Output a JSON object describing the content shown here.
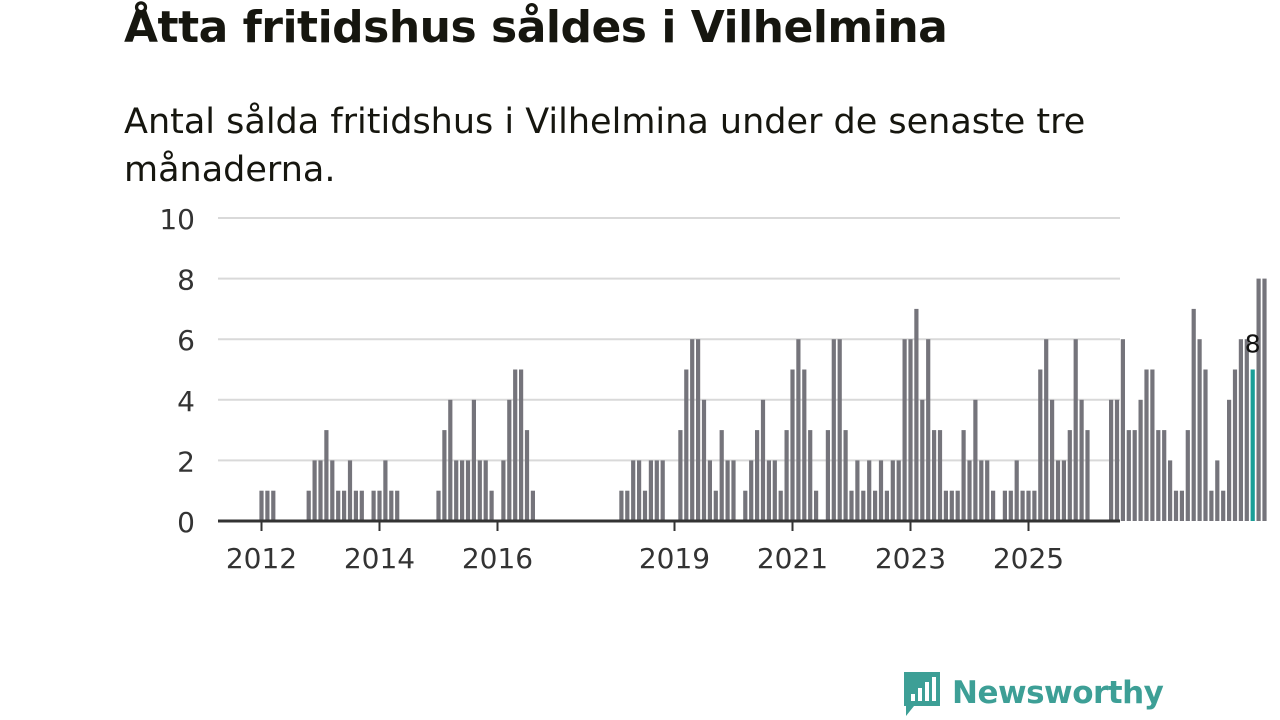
{
  "title": "Åtta fritidshus såldes i Vilhelmina",
  "subtitle": "Antal sålda fritidshus i Vilhelmina under de senaste tre månaderna.",
  "brand": {
    "name": "Newsworthy",
    "color": "#3d9f96"
  },
  "colors": {
    "bar": "#75747b",
    "highlight": "#1a9e97",
    "grid": "#d9d9d9",
    "axis": "#333333"
  },
  "chart_data": {
    "type": "bar",
    "title": "Åtta fritidshus såldes i Vilhelmina",
    "xlabel": "",
    "ylabel": "",
    "ylim": [
      0,
      10
    ],
    "yticks": [
      0,
      2,
      4,
      6,
      8,
      10
    ],
    "grid": true,
    "x_start": "2012-01",
    "x_tick_labels": [
      {
        "label": "2012",
        "index": 0
      },
      {
        "label": "2014",
        "index": 20
      },
      {
        "label": "2016",
        "index": 40
      },
      {
        "label": "2019",
        "index": 70
      },
      {
        "label": "2021",
        "index": 90
      },
      {
        "label": "2023",
        "index": 110
      },
      {
        "label": "2025",
        "index": 130
      }
    ],
    "values": [
      1,
      1,
      1,
      0,
      0,
      0,
      0,
      0,
      1,
      2,
      2,
      3,
      2,
      1,
      1,
      2,
      1,
      1,
      0,
      1,
      1,
      2,
      1,
      1,
      0,
      0,
      0,
      0,
      0,
      0,
      1,
      3,
      4,
      2,
      2,
      2,
      4,
      2,
      2,
      1,
      0,
      2,
      4,
      5,
      5,
      3,
      1,
      0,
      0,
      0,
      0,
      0,
      0,
      0,
      0,
      0,
      0,
      0,
      0,
      0,
      0,
      1,
      1,
      2,
      2,
      1,
      2,
      2,
      2,
      0,
      0,
      3,
      5,
      6,
      6,
      4,
      2,
      1,
      3,
      2,
      2,
      0,
      1,
      2,
      3,
      4,
      2,
      2,
      1,
      3,
      5,
      6,
      5,
      3,
      1,
      0,
      3,
      6,
      6,
      3,
      1,
      2,
      1,
      2,
      1,
      2,
      1,
      2,
      2,
      6,
      6,
      7,
      4,
      6,
      3,
      3,
      1,
      1,
      1,
      3,
      2,
      4,
      2,
      2,
      1,
      0,
      1,
      1,
      2,
      1,
      1,
      1,
      5,
      6,
      4,
      2,
      2,
      3,
      6,
      4,
      3,
      0,
      0,
      0,
      4,
      4,
      6,
      3,
      3,
      4,
      5,
      5,
      3,
      3,
      2,
      1,
      1,
      3,
      7,
      6,
      5,
      1,
      2,
      1,
      4,
      5,
      6,
      6,
      5,
      8,
      8
    ],
    "highlight_index": 168,
    "highlight_label": "8"
  }
}
